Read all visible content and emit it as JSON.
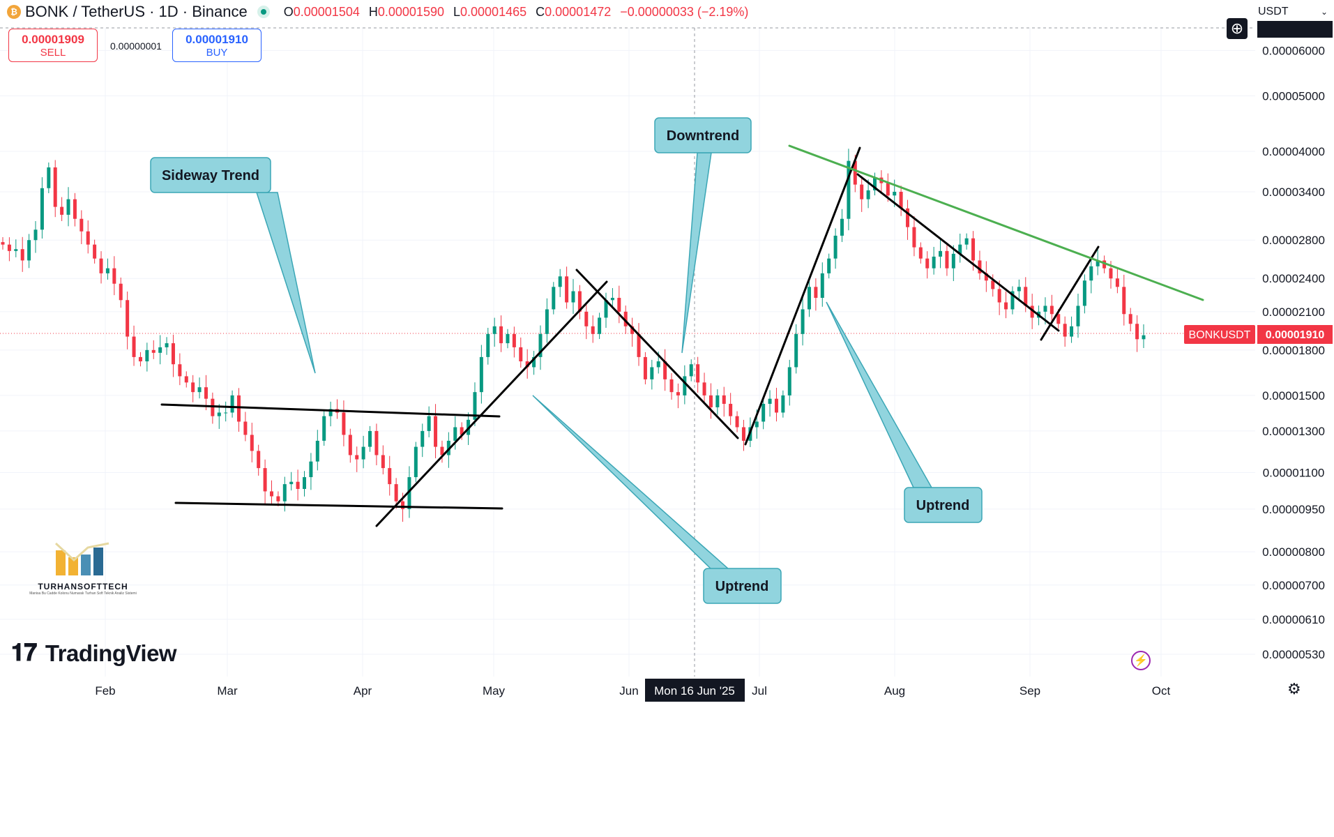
{
  "header": {
    "symbol": "BONK / TetherUS · 1D · Binance",
    "open_label": "O",
    "open": "0.00001504",
    "high_label": "H",
    "high": "0.00001590",
    "low_label": "L",
    "low": "0.00001465",
    "close_label": "C",
    "close": "0.00001472",
    "change": "−0.00000033 (−2.19%)"
  },
  "trade": {
    "sell_price": "0.00001909",
    "sell_label": "SELL",
    "spread": "0.00000001",
    "buy_price": "0.00001910",
    "buy_label": "BUY"
  },
  "currency": "USDT",
  "price_tag": {
    "symbol": "BONKUSDT",
    "price": "0.00001910"
  },
  "crosshair_date": "Mon 16 Jun '25",
  "logo_text": "TradingView",
  "watermark": {
    "name": "TURHANSOFTTECH",
    "tagline": "Manisa Bu Cadde Kolonu Numaralı Turhan Soft Teknik Analiz Sistemi"
  },
  "colors": {
    "up": "#089981",
    "down": "#f23645",
    "callout": "#91d4de",
    "green_line": "#4caf50",
    "trend_line": "#000000"
  },
  "chart_data": {
    "type": "candlestick",
    "scale": "log",
    "y_ticks": [
      "0.00006000",
      "0.00005000",
      "0.00004000",
      "0.00003400",
      "0.00002800",
      "0.00002400",
      "0.00002100",
      "0.00001800",
      "0.00001500",
      "0.00001300",
      "0.00001100",
      "0.00000950",
      "0.00000800",
      "0.00000700",
      "0.00000610",
      "0.00000530"
    ],
    "x_ticks": [
      "Feb",
      "Mar",
      "Apr",
      "May",
      "Jun",
      "Jul",
      "Aug",
      "Sep",
      "Oct"
    ],
    "closes": [
      2.75e-05,
      2.68e-05,
      2.7e-05,
      2.58e-05,
      2.8e-05,
      2.92e-05,
      3.45e-05,
      3.75e-05,
      3.2e-05,
      3.1e-05,
      3.3e-05,
      3.05e-05,
      2.9e-05,
      2.75e-05,
      2.6e-05,
      2.45e-05,
      2.5e-05,
      2.35e-05,
      2.2e-05,
      1.9e-05,
      1.75e-05,
      1.72e-05,
      1.8e-05,
      1.78e-05,
      1.82e-05,
      1.85e-05,
      1.7e-05,
      1.62e-05,
      1.58e-05,
      1.52e-05,
      1.55e-05,
      1.48e-05,
      1.38e-05,
      1.4e-05,
      1.4e-05,
      1.5e-05,
      1.35e-05,
      1.28e-05,
      1.2e-05,
      1.12e-05,
      1.02e-05,
      1e-05,
      9.8e-06,
      1.05e-05,
      1.06e-05,
      1.03e-05,
      1.08e-05,
      1.15e-05,
      1.25e-05,
      1.38e-05,
      1.42e-05,
      1.4e-05,
      1.28e-05,
      1.18e-05,
      1.16e-05,
      1.22e-05,
      1.3e-05,
      1.18e-05,
      1.12e-05,
      1.05e-05,
      9.8e-06,
      9.5e-06,
      1.08e-05,
      1.22e-05,
      1.3e-05,
      1.38e-05,
      1.22e-05,
      1.18e-05,
      1.25e-05,
      1.32e-05,
      1.28e-05,
      1.36e-05,
      1.52e-05,
      1.75e-05,
      1.92e-05,
      1.98e-05,
      1.85e-05,
      1.92e-05,
      1.82e-05,
      1.72e-05,
      1.68e-05,
      1.75e-05,
      1.92e-05,
      2.12e-05,
      2.32e-05,
      2.42e-05,
      2.18e-05,
      2.28e-05,
      2.1e-05,
      1.98e-05,
      1.92e-05,
      2.05e-05,
      2.2e-05,
      2.22e-05,
      2.1e-05,
      1.98e-05,
      1.92e-05,
      1.75e-05,
      1.6e-05,
      1.68e-05,
      1.72e-05,
      1.6e-05,
      1.52e-05,
      1.5e-05,
      1.62e-05,
      1.7e-05,
      1.58e-05,
      1.5e-05,
      1.43e-05,
      1.5e-05,
      1.45e-05,
      1.38e-05,
      1.32e-05,
      1.25e-05,
      1.32e-05,
      1.35e-05,
      1.45e-05,
      1.48e-05,
      1.4e-05,
      1.5e-05,
      1.68e-05,
      1.92e-05,
      2.12e-05,
      2.32e-05,
      2.22e-05,
      2.45e-05,
      2.6e-05,
      2.85e-05,
      3.05e-05,
      3.85e-05,
      3.5e-05,
      3.3e-05,
      3.42e-05,
      3.6e-05,
      3.52e-05,
      3.35e-05,
      3.4e-05,
      3.18e-05,
      2.95e-05,
      2.72e-05,
      2.6e-05,
      2.5e-05,
      2.62e-05,
      2.68e-05,
      2.5e-05,
      2.65e-05,
      2.75e-05,
      2.82e-05,
      2.58e-05,
      2.45e-05,
      2.38e-05,
      2.3e-05,
      2.18e-05,
      2.12e-05,
      2.28e-05,
      2.32e-05,
      2.15e-05,
      2.05e-05,
      2.1e-05,
      2.15e-05,
      2.08e-05,
      2e-05,
      1.9e-05,
      1.98e-05,
      2.15e-05,
      2.38e-05,
      2.52e-05,
      2.58e-05,
      2.5e-05,
      2.4e-05,
      2.32e-05,
      2.08e-05,
      2e-05,
      1.88e-05,
      1.91e-05
    ]
  }
}
